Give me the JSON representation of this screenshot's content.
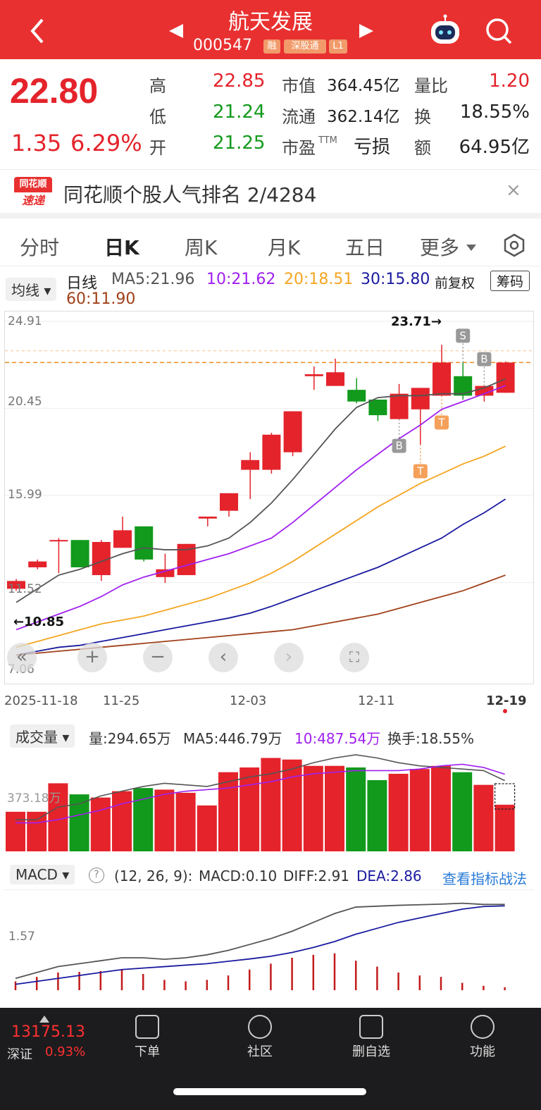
{
  "header": {
    "title": "航天发展",
    "code": "000547",
    "tags": [
      "融",
      "深股通",
      "L1"
    ],
    "back_icon": "chevron-left-icon",
    "search_icon": "search-icon",
    "robot_icon": "robot-icon"
  },
  "quote": {
    "price": "22.80",
    "change": "1.35",
    "change_pct": "6.29%",
    "high_label": "高",
    "high": "22.85",
    "low_label": "低",
    "low": "21.24",
    "open_label": "开",
    "open": "21.25",
    "mcap_label": "市值",
    "mcap": "364.45亿",
    "float_label": "流通",
    "float": "362.14亿",
    "pe_label": "市盈",
    "pe_sup": "TTM",
    "pe": "亏损",
    "vr_label": "量比",
    "vr": "1.20",
    "turn_label": "换",
    "turn": "18.55%",
    "amt_label": "额",
    "amt": "64.95亿"
  },
  "rank": {
    "logo_top": "同花顺",
    "logo_bottom": "速递",
    "text": "同花顺个股人气排名 2/4284",
    "close": "×"
  },
  "tabs": [
    "分时",
    "日K",
    "周K",
    "月K",
    "五日",
    "更多"
  ],
  "legend": {
    "dropdown": "均线",
    "kind": "日线",
    "ma5": "MA5:21.96",
    "ma10": "10:21.62",
    "ma20": "20:18.51",
    "ma30": "30:15.80",
    "ma60": "60:11.90",
    "fq": "前复权",
    "chip": "筹码"
  },
  "kchart": {
    "y_ticks": [
      "24.91",
      "20.45",
      "15.99",
      "11.52",
      "7.06"
    ],
    "high_note": "23.71→",
    "low_note": "←10.85",
    "markers": {
      "s": "S",
      "b": "B",
      "t": "T"
    }
  },
  "dates": [
    "2025-11-18",
    "11-25",
    "12-03",
    "12-11",
    "12-19"
  ],
  "volume": {
    "dropdown": "成交量",
    "vol": "量:294.65万",
    "ma5": "MA5:446.79万",
    "ma10": "10:487.54万",
    "turnover": "换手:18.55%",
    "tick": "373.18万"
  },
  "macd": {
    "dropdown": "MACD",
    "params": "(12, 26, 9):",
    "macd": "MACD:0.10",
    "diff": "DIFF:2.91",
    "dea": "DEA:2.86",
    "link": "查看指标战法",
    "tick": "1.57"
  },
  "footer": {
    "index_value": "13175.13",
    "index_name": "深证",
    "index_pct": "0.93%",
    "items": [
      "下单",
      "社区",
      "删自选",
      "功能"
    ]
  },
  "colors": {
    "up": "#e4232b",
    "down": "#119a1c",
    "ma5": "#555555",
    "ma10": "#a020f0",
    "ma20": "#f5a623",
    "ma30": "#1a1aa0",
    "ma60": "#a0401a"
  },
  "chart_data": {
    "type": "candlestick",
    "candles": [
      {
        "o": 11.2,
        "c": 11.6,
        "h": 11.7,
        "l": 11.1
      },
      {
        "o": 12.3,
        "c": 12.6,
        "h": 12.7,
        "l": 12.2
      },
      {
        "o": 13.7,
        "c": 13.7,
        "h": 13.8,
        "l": 12.0
      },
      {
        "o": 13.7,
        "c": 12.3,
        "h": 13.7,
        "l": 12.3
      },
      {
        "o": 11.9,
        "c": 13.6,
        "h": 13.7,
        "l": 11.6
      },
      {
        "o": 13.3,
        "c": 14.2,
        "h": 14.9,
        "l": 13.3
      },
      {
        "o": 14.4,
        "c": 12.7,
        "h": 14.4,
        "l": 12.6
      },
      {
        "o": 11.8,
        "c": 12.2,
        "h": 13.0,
        "l": 11.5
      },
      {
        "o": 11.9,
        "c": 13.5,
        "h": 13.5,
        "l": 11.9
      },
      {
        "o": 14.8,
        "c": 14.9,
        "h": 14.9,
        "l": 14.4
      },
      {
        "o": 15.2,
        "c": 16.1,
        "h": 16.1,
        "l": 14.9
      },
      {
        "o": 17.3,
        "c": 17.8,
        "h": 18.2,
        "l": 15.8
      },
      {
        "o": 17.3,
        "c": 19.1,
        "h": 19.2,
        "l": 17.1
      },
      {
        "o": 18.2,
        "c": 20.3,
        "h": 20.3,
        "l": 18.0
      },
      {
        "o": 22.1,
        "c": 22.2,
        "h": 22.6,
        "l": 21.4
      },
      {
        "o": 21.6,
        "c": 22.3,
        "h": 23.0,
        "l": 21.6
      },
      {
        "o": 21.4,
        "c": 20.8,
        "h": 22.0,
        "l": 20.7
      },
      {
        "o": 20.9,
        "c": 20.1,
        "h": 20.9,
        "l": 19.8
      },
      {
        "o": 19.9,
        "c": 21.2,
        "h": 21.7,
        "l": 19.9
      },
      {
        "o": 20.4,
        "c": 21.5,
        "h": 21.5,
        "l": 18.6
      },
      {
        "o": 21.1,
        "c": 22.8,
        "h": 23.71,
        "l": 21.1
      },
      {
        "o": 22.1,
        "c": 21.1,
        "h": 22.8,
        "l": 20.9
      },
      {
        "o": 21.1,
        "c": 21.6,
        "h": 21.6,
        "l": 20.8
      },
      {
        "o": 21.25,
        "c": 22.8,
        "h": 22.85,
        "l": 21.24
      }
    ],
    "ma5": [
      10.5,
      11.2,
      11.9,
      12.2,
      12.6,
      13.0,
      13.3,
      13.2,
      13.2,
      13.4,
      13.8,
      14.6,
      15.6,
      16.8,
      18.1,
      19.4,
      20.5,
      21.0,
      21.1,
      21.1,
      21.2,
      21.2,
      21.5,
      21.96
    ],
    "ma10": [
      9.1,
      9.5,
      9.9,
      10.3,
      10.8,
      11.4,
      11.8,
      12.1,
      12.4,
      12.7,
      13.0,
      13.4,
      13.8,
      14.6,
      15.5,
      16.4,
      17.3,
      18.1,
      18.9,
      19.6,
      20.4,
      20.8,
      21.2,
      21.62
    ],
    "ma20": [
      8.2,
      8.5,
      8.8,
      9.1,
      9.4,
      9.6,
      9.8,
      10.1,
      10.4,
      10.7,
      11.1,
      11.5,
      12.0,
      12.6,
      13.3,
      14.0,
      14.7,
      15.4,
      16.0,
      16.6,
      17.1,
      17.6,
      18.0,
      18.51
    ],
    "ma30": [
      7.8,
      8.0,
      8.2,
      8.3,
      8.5,
      8.7,
      8.9,
      9.1,
      9.3,
      9.5,
      9.7,
      9.95,
      10.3,
      10.7,
      11.1,
      11.5,
      11.9,
      12.3,
      12.8,
      13.3,
      13.8,
      14.5,
      15.1,
      15.8
    ],
    "ma60": [
      7.8,
      7.9,
      8.0,
      8.1,
      8.2,
      8.3,
      8.4,
      8.5,
      8.6,
      8.7,
      8.8,
      8.9,
      9.0,
      9.1,
      9.3,
      9.5,
      9.7,
      9.9,
      10.2,
      10.5,
      10.8,
      11.1,
      11.5,
      11.9
    ],
    "ylim": [
      7.06,
      24.91
    ],
    "volume": [
      250,
      250,
      430,
      360,
      340,
      380,
      400,
      390,
      370,
      290,
      500,
      530,
      590,
      580,
      540,
      540,
      530,
      450,
      490,
      520,
      540,
      500,
      420,
      294.65
    ],
    "vol_ma5": [
      200,
      200,
      280,
      300,
      350,
      380,
      410,
      430,
      420,
      410,
      440,
      470,
      490,
      520,
      560,
      590,
      610,
      590,
      560,
      540,
      530,
      520,
      510,
      446.79
    ],
    "vol_ma10": [
      180,
      180,
      200,
      230,
      260,
      300,
      330,
      360,
      380,
      390,
      400,
      420,
      440,
      470,
      490,
      500,
      510,
      510,
      510,
      520,
      540,
      550,
      530,
      487.54
    ],
    "vol_ylim": [
      0,
      650
    ],
    "macd_bar": [
      0.3,
      0.45,
      0.6,
      0.62,
      0.65,
      0.7,
      0.55,
      0.35,
      0.3,
      0.35,
      0.5,
      0.7,
      0.9,
      1.1,
      1.2,
      1.25,
      1.0,
      0.8,
      0.6,
      0.5,
      0.45,
      0.25,
      0.15,
      0.1
    ],
    "diff": [
      0.4,
      0.6,
      0.8,
      0.9,
      1.0,
      1.1,
      1.1,
      1.05,
      1.1,
      1.2,
      1.35,
      1.55,
      1.75,
      2.0,
      2.3,
      2.6,
      2.82,
      2.85,
      2.88,
      2.9,
      2.92,
      2.95,
      2.91,
      2.91
    ],
    "dea": [
      0.2,
      0.3,
      0.4,
      0.5,
      0.6,
      0.7,
      0.75,
      0.8,
      0.85,
      0.9,
      0.98,
      1.06,
      1.15,
      1.28,
      1.45,
      1.65,
      1.9,
      2.1,
      2.3,
      2.45,
      2.6,
      2.75,
      2.84,
      2.86
    ],
    "macd_ylim": [
      0,
      3.3
    ]
  }
}
